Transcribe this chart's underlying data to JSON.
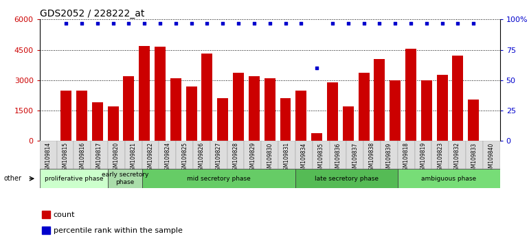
{
  "title": "GDS2052 / 228222_at",
  "samples": [
    "GSM109814",
    "GSM109815",
    "GSM109816",
    "GSM109817",
    "GSM109820",
    "GSM109821",
    "GSM109822",
    "GSM109824",
    "GSM109825",
    "GSM109826",
    "GSM109827",
    "GSM109828",
    "GSM109829",
    "GSM109830",
    "GSM109831",
    "GSM109834",
    "GSM109835",
    "GSM109836",
    "GSM109837",
    "GSM109838",
    "GSM109839",
    "GSM109818",
    "GSM109819",
    "GSM109823",
    "GSM109832",
    "GSM109833",
    "GSM109840"
  ],
  "counts": [
    2500,
    2500,
    1900,
    1700,
    3200,
    4700,
    4650,
    3100,
    2700,
    4300,
    2100,
    3350,
    3200,
    3100,
    2100,
    2500,
    370,
    2900,
    1700,
    3350,
    4050,
    3000,
    4550,
    3000,
    3250,
    4200,
    2050
  ],
  "percentile_ranks": [
    97,
    97,
    97,
    97,
    97,
    97,
    97,
    97,
    97,
    97,
    97,
    97,
    97,
    97,
    97,
    97,
    60,
    97,
    97,
    97,
    97,
    97,
    97,
    97,
    97,
    97,
    97
  ],
  "bar_color": "#cc0000",
  "dot_color": "#0000cc",
  "plot_bg": "#ffffff",
  "tick_bg": "#dddddd",
  "ylim_left": [
    0,
    6000
  ],
  "ylim_right": [
    0,
    100
  ],
  "yticks_left": [
    0,
    1500,
    3000,
    4500,
    6000
  ],
  "ytick_labels_left": [
    "0",
    "1500",
    "3000",
    "4500",
    "6000"
  ],
  "yticks_right": [
    0,
    25,
    50,
    75,
    100
  ],
  "ytick_labels_right": [
    "0",
    "25",
    "50",
    "75",
    "100%"
  ],
  "phases": [
    {
      "label": "proliferative phase",
      "start": 0,
      "end": 4,
      "color": "#ccffcc"
    },
    {
      "label": "early secretory\nphase",
      "start": 4,
      "end": 6,
      "color": "#aaddaa"
    },
    {
      "label": "mid secretory phase",
      "start": 6,
      "end": 15,
      "color": "#66cc66"
    },
    {
      "label": "late secretory phase",
      "start": 15,
      "end": 21,
      "color": "#55bb55"
    },
    {
      "label": "ambiguous phase",
      "start": 21,
      "end": 27,
      "color": "#77dd77"
    }
  ],
  "legend_count_label": "count",
  "legend_pct_label": "percentile rank within the sample",
  "other_label": "other"
}
